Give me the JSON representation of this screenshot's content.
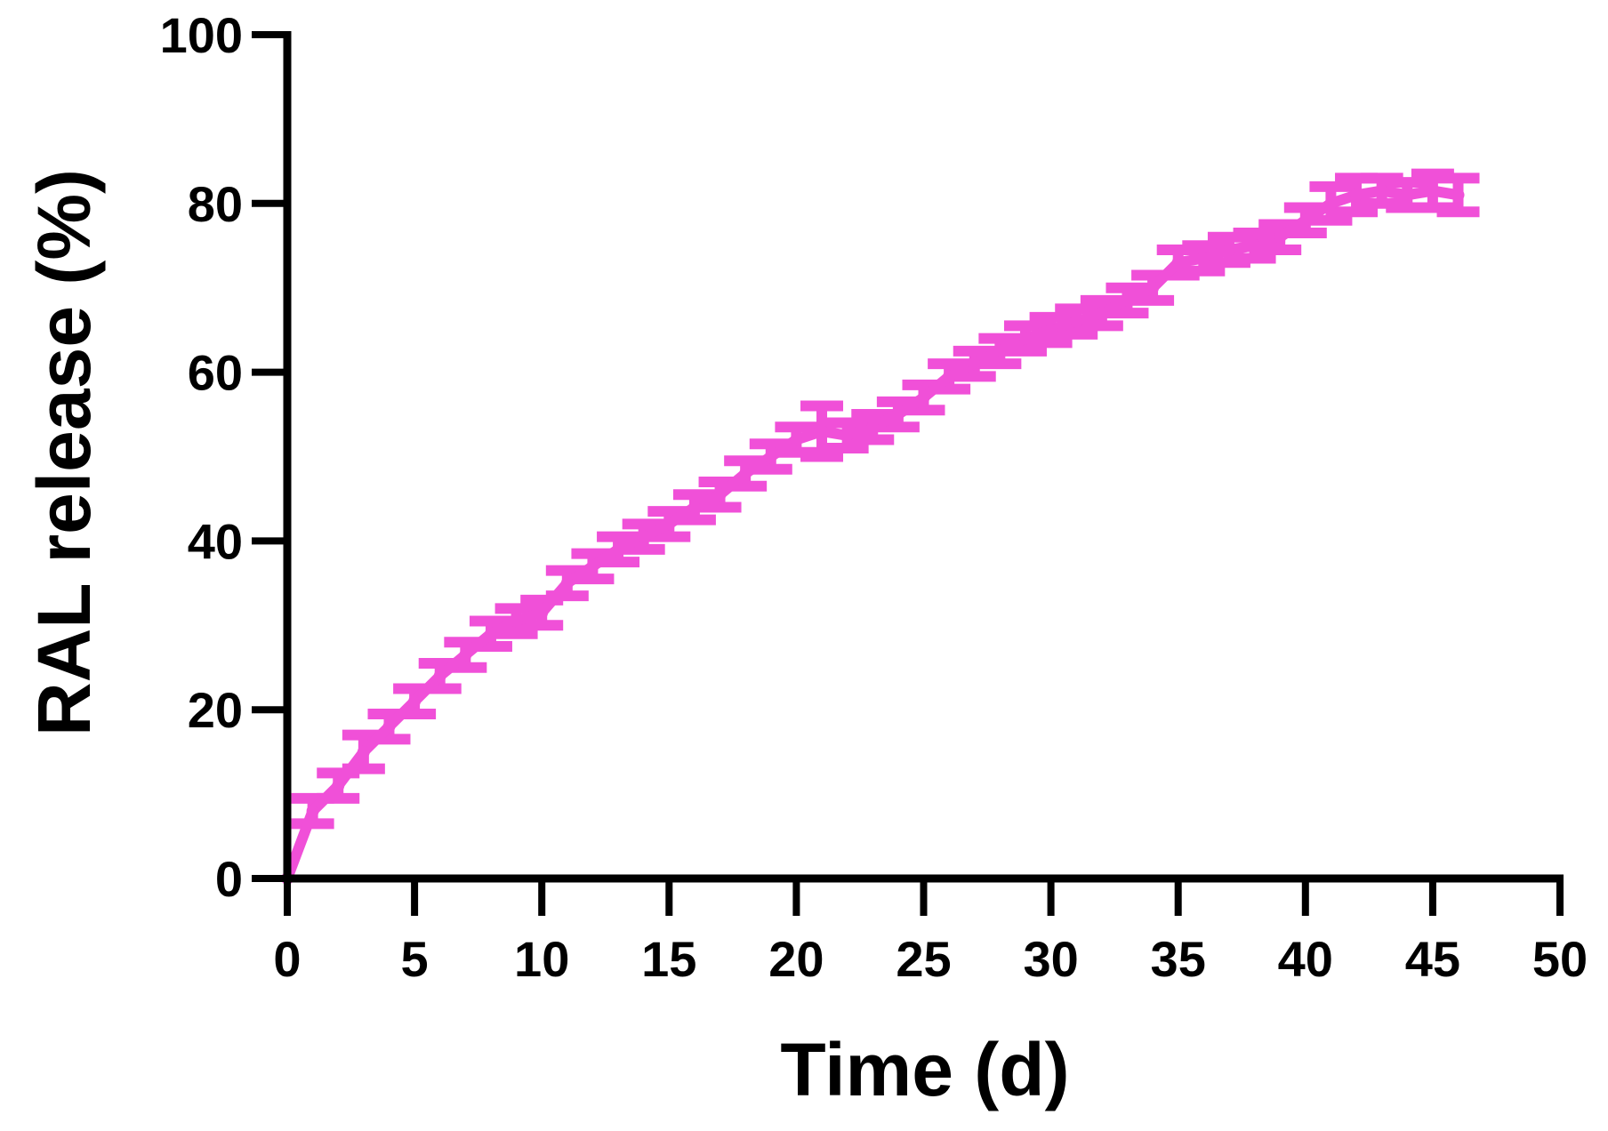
{
  "chart_data": {
    "type": "line",
    "xlabel": "Time (d)",
    "ylabel": "RAL release (%)",
    "xlim": [
      0,
      50
    ],
    "ylim": [
      0,
      100
    ],
    "xticks": [
      0,
      5,
      10,
      15,
      20,
      25,
      30,
      35,
      40,
      45,
      50
    ],
    "yticks": [
      0,
      20,
      40,
      60,
      80,
      100
    ],
    "grid": false,
    "legend": "none",
    "series": [
      {
        "color": "#f050d8",
        "x": [
          0,
          1,
          2,
          3,
          4,
          5,
          6,
          7,
          8,
          9,
          10,
          11,
          12,
          13,
          14,
          15,
          16,
          17,
          18,
          19,
          20,
          21,
          22,
          23,
          24,
          25,
          26,
          27,
          28,
          29,
          30,
          31,
          32,
          33,
          34,
          35,
          36,
          37,
          38,
          39,
          40,
          41,
          42,
          43,
          44,
          45,
          46
        ],
        "y": [
          0,
          8,
          11,
          15,
          18,
          21,
          24,
          26.5,
          29,
          30.5,
          31.5,
          35,
          37,
          39,
          40.5,
          42,
          44,
          45.5,
          48,
          50,
          52,
          53,
          52.5,
          53.5,
          55,
          57,
          59.5,
          61,
          62.5,
          64,
          65,
          66,
          67,
          68.5,
          70,
          73,
          73.5,
          74.5,
          75,
          76,
          78,
          80,
          81,
          81.5,
          81,
          81.5,
          81
        ],
        "error": [
          0,
          1.5,
          1.5,
          2,
          1.5,
          1.5,
          1.5,
          1.5,
          1.5,
          1.5,
          1.5,
          1.5,
          1.5,
          1.5,
          1.5,
          1.5,
          1.5,
          1.5,
          1.5,
          1.5,
          1.5,
          3,
          1.5,
          1.5,
          1.5,
          1.5,
          1.5,
          1.5,
          1.5,
          1.5,
          1.5,
          1.5,
          1.5,
          1.5,
          1.5,
          1.5,
          1.5,
          1.5,
          1.5,
          1.5,
          1.5,
          2,
          2,
          1.5,
          1.5,
          2,
          2
        ]
      }
    ]
  }
}
